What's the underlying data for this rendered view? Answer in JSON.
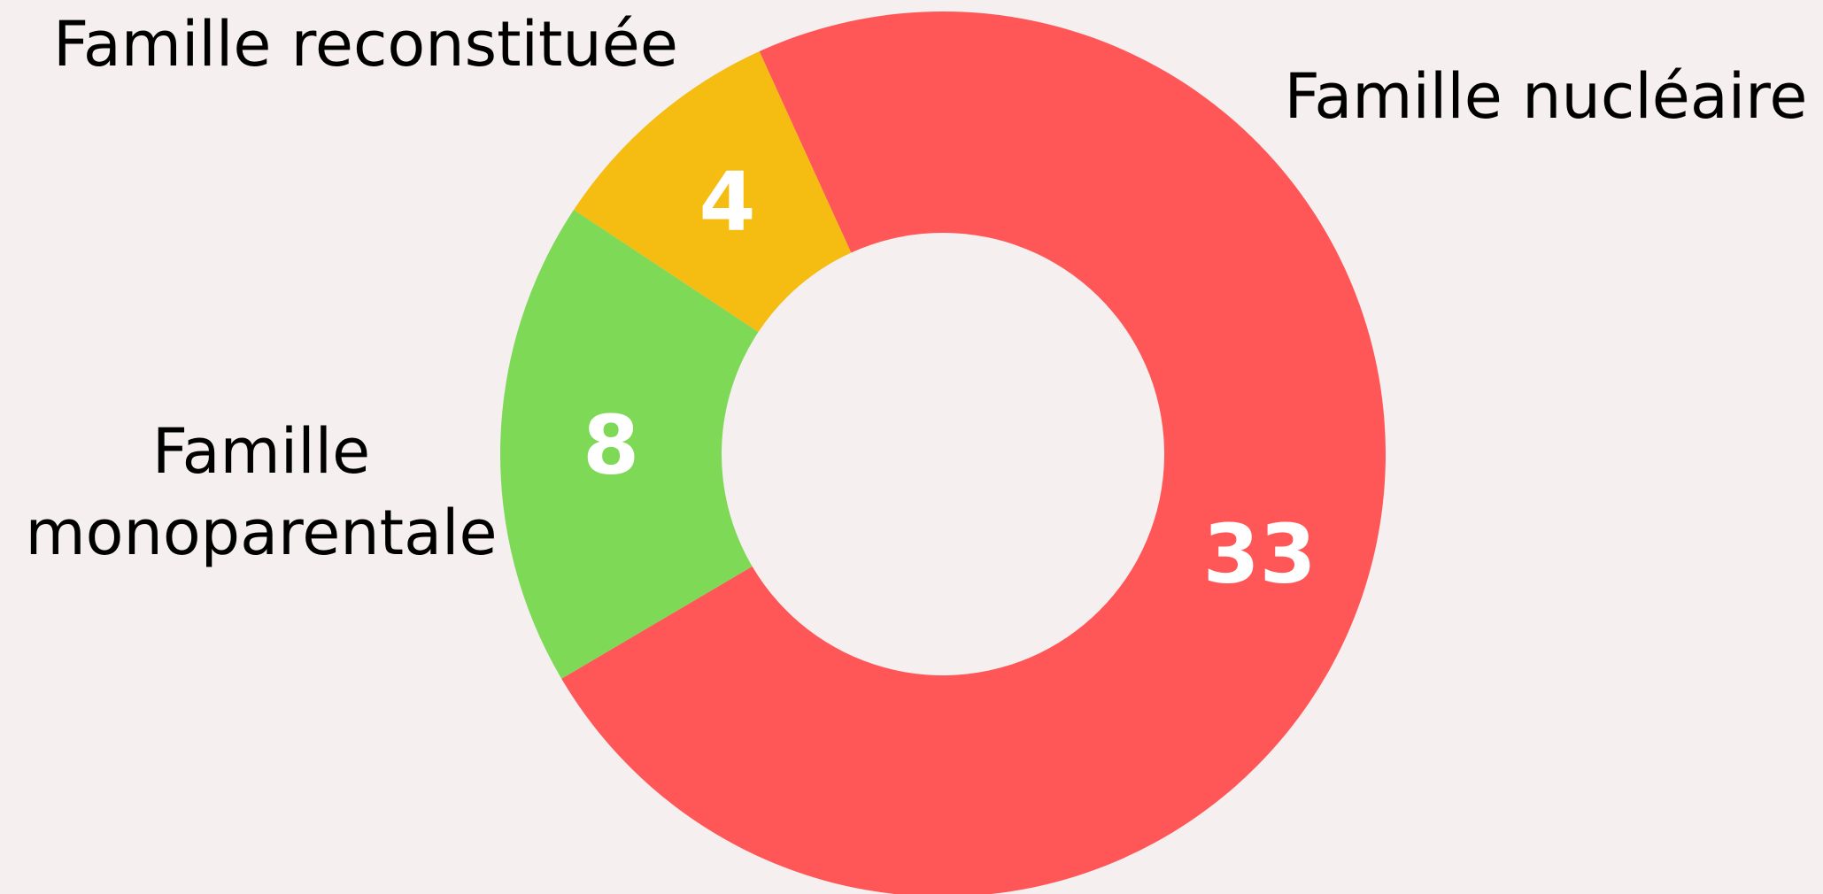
{
  "chart_data": {
    "type": "donut",
    "categories": [
      "Famille nucléaire",
      "Famille monoparentale",
      "Famille reconstituée"
    ],
    "values": [
      33,
      8,
      4
    ],
    "colors": [
      "#ff5757",
      "#7ed957",
      "#f5bc11"
    ]
  }
}
